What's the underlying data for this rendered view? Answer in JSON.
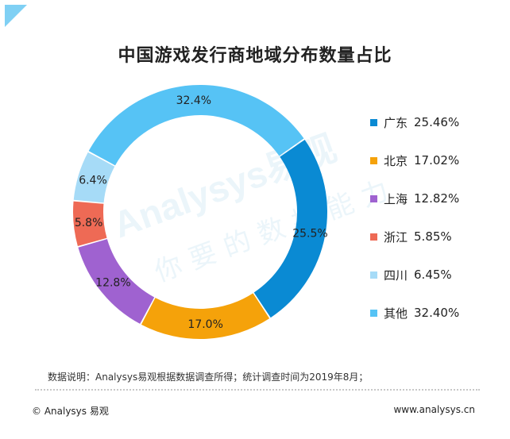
{
  "chart_data": {
    "type": "pie",
    "title": "中国游戏发行商地域分布数量占比",
    "slices": [
      {
        "name": "广东",
        "value": 25.46,
        "label": "25.5%",
        "legend_value": "25.46%",
        "color": "#0a8ad3"
      },
      {
        "name": "北京",
        "value": 17.02,
        "label": "17.0%",
        "legend_value": "17.02%",
        "color": "#f5a20a"
      },
      {
        "name": "上海",
        "value": 12.82,
        "label": "12.8%",
        "legend_value": "12.82%",
        "color": "#9f62d0"
      },
      {
        "name": "浙江",
        "value": 5.85,
        "label": "5.8%",
        "legend_value": "5.85%",
        "color": "#ee6a55"
      },
      {
        "name": "四川",
        "value": 6.45,
        "label": "6.4%",
        "legend_value": "6.45%",
        "color": "#a6dbf7"
      },
      {
        "name": "其他",
        "value": 32.4,
        "label": "32.4%",
        "legend_value": "32.40%",
        "color": "#56c3f5"
      }
    ],
    "legend_placement": "right"
  },
  "watermark": {
    "brand": "Analysys易观",
    "slogan": "你要的数据能力"
  },
  "footer": {
    "note": "数据说明：Analysys易观根据数据调查所得；统计调查时间为2019年8月；",
    "copyright": "© Analysys 易观",
    "url": "www.analysys.cn"
  }
}
